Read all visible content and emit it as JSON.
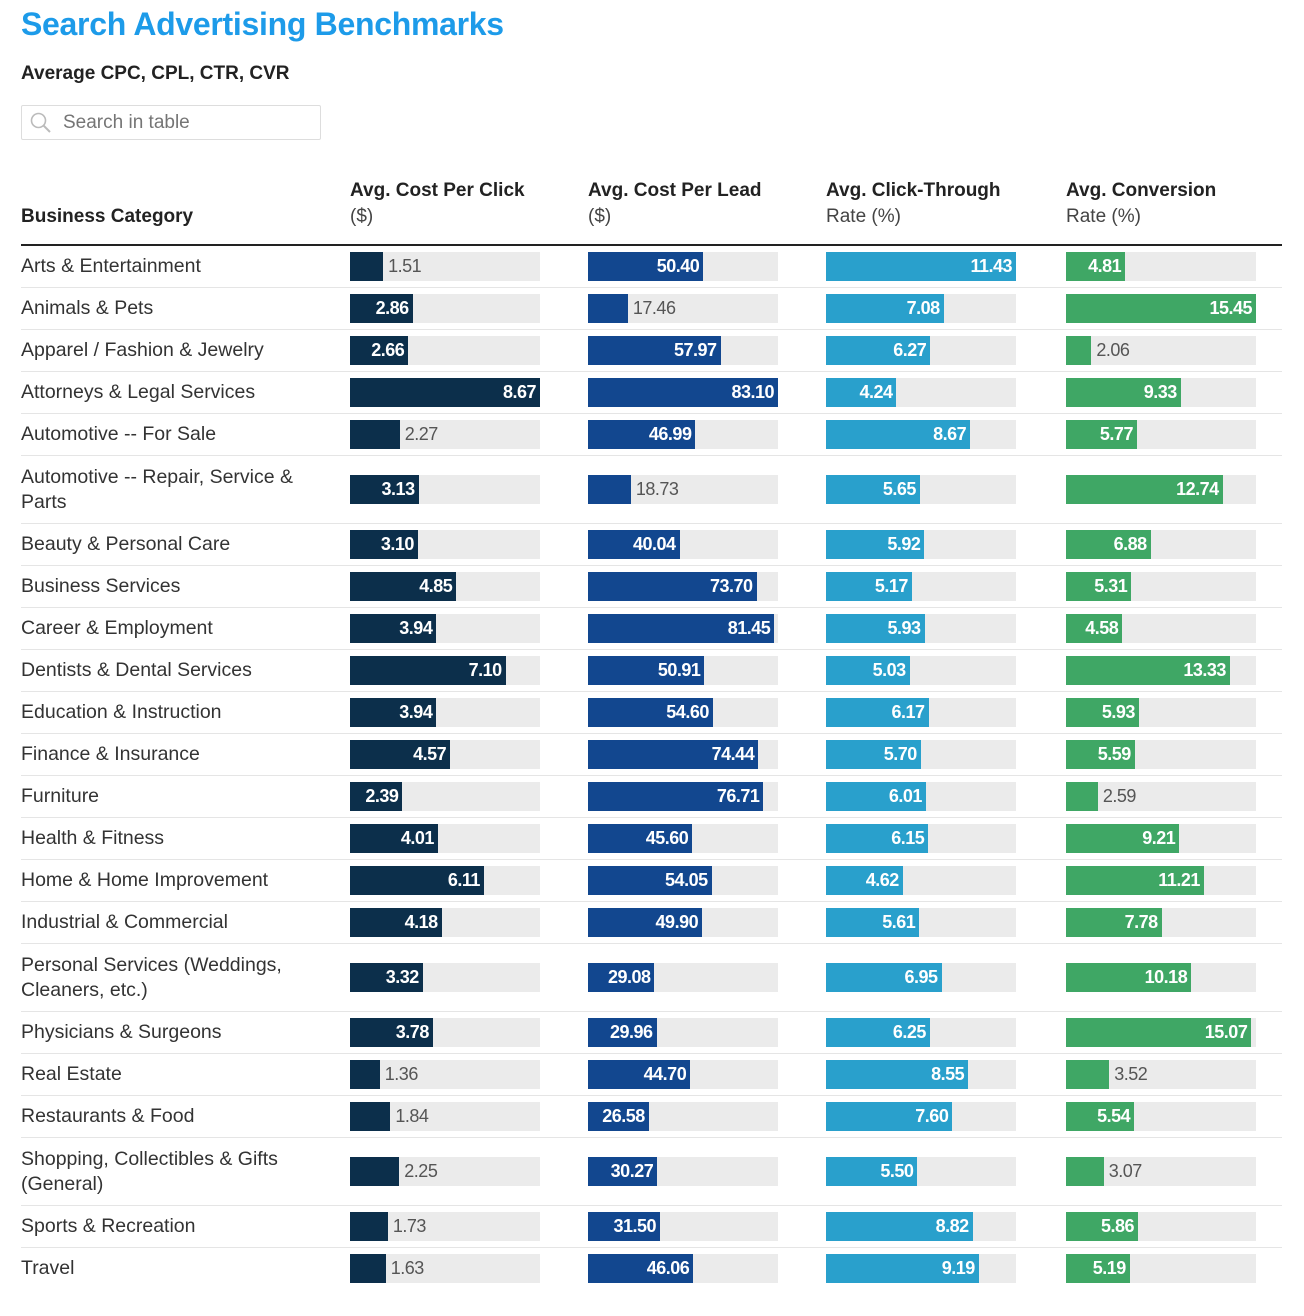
{
  "title": "Search Advertising Benchmarks",
  "subtitle": "Average CPC, CPL, CTR, CVR",
  "search": {
    "placeholder": "Search in table",
    "icon": "search-icon"
  },
  "chart_data": {
    "type": "table",
    "columns": [
      {
        "label": "Business Category"
      },
      {
        "label": "Avg. Cost Per Click",
        "unit": "($)",
        "color": "#0c2f4b"
      },
      {
        "label": "Avg. Cost Per Lead",
        "unit": "($)",
        "color": "#12478f"
      },
      {
        "label": "Avg. Click-Through",
        "unit": "Rate (%)",
        "color": "#29a0cc"
      },
      {
        "label": "Avg. Conversion",
        "unit": "Rate (%)",
        "color": "#3fa765"
      }
    ],
    "rows": [
      {
        "category": "Arts & Entertainment",
        "values": [
          "1.51",
          "50.40",
          "11.43",
          "4.81"
        ]
      },
      {
        "category": "Animals & Pets",
        "values": [
          "2.86",
          "17.46",
          "7.08",
          "15.45"
        ]
      },
      {
        "category": "Apparel / Fashion & Jewelry",
        "values": [
          "2.66",
          "57.97",
          "6.27",
          "2.06"
        ]
      },
      {
        "category": "Attorneys & Legal Services",
        "values": [
          "8.67",
          "83.10",
          "4.24",
          "9.33"
        ]
      },
      {
        "category": "Automotive -- For Sale",
        "values": [
          "2.27",
          "46.99",
          "8.67",
          "5.77"
        ]
      },
      {
        "category": "Automotive -- Repair, Service & Parts",
        "values": [
          "3.13",
          "18.73",
          "5.65",
          "12.74"
        ]
      },
      {
        "category": "Beauty & Personal Care",
        "values": [
          "3.10",
          "40.04",
          "5.92",
          "6.88"
        ]
      },
      {
        "category": "Business Services",
        "values": [
          "4.85",
          "73.70",
          "5.17",
          "5.31"
        ]
      },
      {
        "category": "Career & Employment",
        "values": [
          "3.94",
          "81.45",
          "5.93",
          "4.58"
        ]
      },
      {
        "category": "Dentists & Dental Services",
        "values": [
          "7.10",
          "50.91",
          "5.03",
          "13.33"
        ]
      },
      {
        "category": "Education & Instruction",
        "values": [
          "3.94",
          "54.60",
          "6.17",
          "5.93"
        ]
      },
      {
        "category": "Finance & Insurance",
        "values": [
          "4.57",
          "74.44",
          "5.70",
          "5.59"
        ]
      },
      {
        "category": "Furniture",
        "values": [
          "2.39",
          "76.71",
          "6.01",
          "2.59"
        ]
      },
      {
        "category": "Health & Fitness",
        "values": [
          "4.01",
          "45.60",
          "6.15",
          "9.21"
        ]
      },
      {
        "category": "Home & Home Improvement",
        "values": [
          "6.11",
          "54.05",
          "4.62",
          "11.21"
        ]
      },
      {
        "category": "Industrial & Commercial",
        "values": [
          "4.18",
          "49.90",
          "5.61",
          "7.78"
        ]
      },
      {
        "category": "Personal Services (Weddings, Cleaners, etc.)",
        "values": [
          "3.32",
          "29.08",
          "6.95",
          "10.18"
        ]
      },
      {
        "category": "Physicians & Surgeons",
        "values": [
          "3.78",
          "29.96",
          "6.25",
          "15.07"
        ]
      },
      {
        "category": "Real Estate",
        "values": [
          "1.36",
          "44.70",
          "8.55",
          "3.52"
        ]
      },
      {
        "category": "Restaurants & Food",
        "values": [
          "1.84",
          "26.58",
          "7.60",
          "5.54"
        ]
      },
      {
        "category": "Shopping, Collectibles & Gifts (General)",
        "values": [
          "2.25",
          "30.27",
          "5.50",
          "3.07"
        ]
      },
      {
        "category": "Sports & Recreation",
        "values": [
          "1.73",
          "31.50",
          "8.82",
          "5.86"
        ]
      },
      {
        "category": "Travel",
        "values": [
          "1.63",
          "46.06",
          "9.19",
          "5.19"
        ]
      }
    ]
  }
}
